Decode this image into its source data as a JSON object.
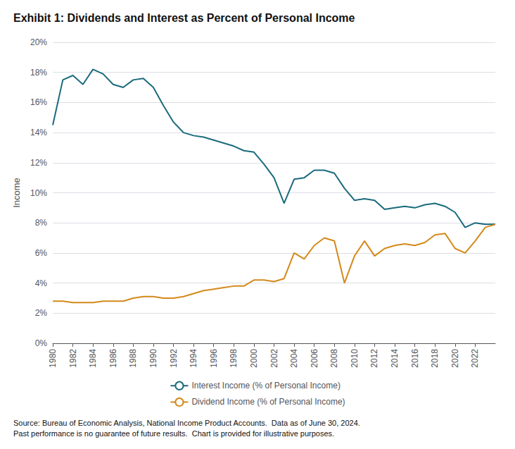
{
  "chart_data": {
    "type": "line",
    "title": "Exhibit 1: Dividends and Interest as Percent of Personal Income",
    "ylabel": "Income",
    "annotations": [
      "Source: Bureau of Economic Analysis, National Income Product Accounts.  Data as of June 30, 2024.\nPast performance is no guarantee of future results.  Chart is provided for illustrative purposes."
    ],
    "x": [
      1980,
      1981,
      1982,
      1983,
      1984,
      1985,
      1986,
      1987,
      1988,
      1989,
      1990,
      1991,
      1992,
      1993,
      1994,
      1995,
      1996,
      1997,
      1998,
      1999,
      2000,
      2001,
      2002,
      2003,
      2004,
      2005,
      2006,
      2007,
      2008,
      2009,
      2010,
      2011,
      2012,
      2013,
      2014,
      2015,
      2016,
      2017,
      2018,
      2019,
      2020,
      2021,
      2022,
      2023,
      2024
    ],
    "series": [
      {
        "name": "Interest Income (% of Personal Income)",
        "color": "#1a6b7c",
        "values": [
          0.145,
          0.175,
          0.178,
          0.172,
          0.182,
          0.179,
          0.172,
          0.17,
          0.175,
          0.176,
          0.17,
          0.158,
          0.147,
          0.14,
          0.138,
          0.137,
          0.135,
          0.133,
          0.131,
          0.128,
          0.127,
          0.119,
          0.11,
          0.093,
          0.109,
          0.11,
          0.115,
          0.115,
          0.113,
          0.103,
          0.095,
          0.096,
          0.095,
          0.089,
          0.09,
          0.091,
          0.09,
          0.092,
          0.093,
          0.091,
          0.087,
          0.077,
          0.08,
          0.079,
          0.079
        ]
      },
      {
        "name": "Dividend Income (% of Personal Income)",
        "color": "#d4891a",
        "values": [
          0.028,
          0.028,
          0.027,
          0.027,
          0.027,
          0.028,
          0.028,
          0.028,
          0.03,
          0.031,
          0.031,
          0.03,
          0.03,
          0.031,
          0.033,
          0.035,
          0.036,
          0.037,
          0.038,
          0.038,
          0.042,
          0.042,
          0.041,
          0.043,
          0.06,
          0.056,
          0.065,
          0.07,
          0.068,
          0.04,
          0.058,
          0.068,
          0.058,
          0.063,
          0.065,
          0.066,
          0.065,
          0.067,
          0.072,
          0.073,
          0.063,
          0.06,
          0.068,
          0.077,
          0.079
        ]
      }
    ],
    "xlim": [
      1980,
      2024
    ],
    "xticks": [
      1980,
      1982,
      1984,
      1986,
      1988,
      1990,
      1992,
      1994,
      1996,
      1998,
      2000,
      2002,
      2004,
      2006,
      2008,
      2010,
      2012,
      2014,
      2016,
      2018,
      2020,
      2022
    ],
    "ylim": [
      0,
      0.2
    ],
    "yticks": [
      {
        "value": 0.0,
        "label": "0%"
      },
      {
        "value": 0.02,
        "label": "2%"
      },
      {
        "value": 0.04,
        "label": "4%"
      },
      {
        "value": 0.06,
        "label": "6%"
      },
      {
        "value": 0.08,
        "label": "8%"
      },
      {
        "value": 0.1,
        "label": "10%"
      },
      {
        "value": 0.12,
        "label": "12%"
      },
      {
        "value": 0.14,
        "label": "14%"
      },
      {
        "value": 0.16,
        "label": "16%"
      },
      {
        "value": 0.18,
        "label": "18%"
      },
      {
        "value": 0.2,
        "label": "20%"
      }
    ],
    "grid": true,
    "legend": "bottom"
  }
}
